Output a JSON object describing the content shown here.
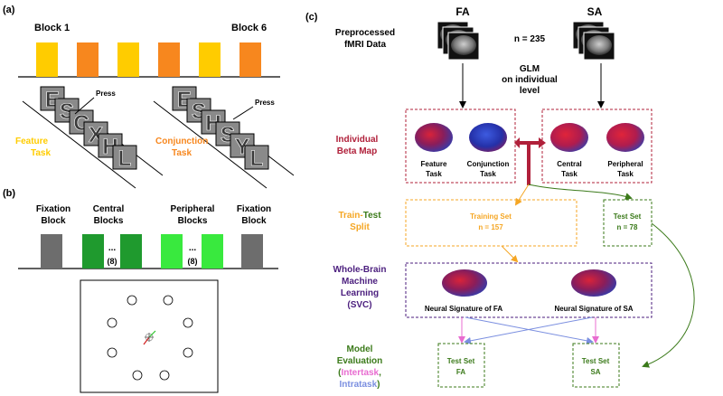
{
  "panel_a": {
    "label": "(a)",
    "block_first": "Block 1",
    "block_last": "Block 6",
    "block_colors": [
      "#ffcc00",
      "#f7871e",
      "#ffcc00",
      "#f7871e",
      "#ffcc00",
      "#f7871e"
    ],
    "press": "Press",
    "feature_letters": [
      "E",
      "S",
      "C",
      "X",
      "H",
      "L"
    ],
    "conjunction_letters": [
      "E",
      "S",
      "H",
      "S",
      "Y",
      "L"
    ],
    "feature_task": [
      "Feature",
      "Task"
    ],
    "conjunction_task": [
      "Conjunction",
      "Task"
    ],
    "feature_color": "#ffcc00",
    "conjunction_color": "#f7871e"
  },
  "panel_b": {
    "label": "(b)",
    "fixation_block_1": [
      "Fixation",
      "Block"
    ],
    "central_blocks": [
      "Central",
      "Blocks"
    ],
    "peripheral_blocks": [
      "Peripheral",
      "Blocks"
    ],
    "fixation_block_2": [
      "Fixation",
      "Block"
    ],
    "ellipsis": "...",
    "count": "(8)",
    "colors": {
      "fixation": "#6d6d6d",
      "central": "#1f9a2e",
      "peripheral": "#39e93e"
    }
  },
  "panel_c": {
    "label": "(c)",
    "preprocessed": [
      "Preprocessed",
      "fMRI Data"
    ],
    "fa": "FA",
    "sa": "SA",
    "n_total": "n = 235",
    "glm": [
      "GLM",
      "on individual",
      "level"
    ],
    "individual_beta": [
      "Individual",
      "Beta Map"
    ],
    "feature_task": [
      "Feature",
      "Task"
    ],
    "conjunction_task": [
      "Conjunction",
      "Task"
    ],
    "central_task": [
      "Central",
      "Task"
    ],
    "peripheral_task": [
      "Peripheral",
      "Task"
    ],
    "split_train": "Train-",
    "split_test": "Test",
    "split_word": "Split",
    "training_set": "Training Set",
    "training_n": "n = 157",
    "test_set": "Test Set",
    "test_n": "n = 78",
    "wbml": [
      "Whole-Brain",
      "Machine",
      "Learning",
      "(SVC)"
    ],
    "signature_fa": "Neural Signature of FA",
    "signature_sa": "Neural Signature of SA",
    "model_eval": [
      "Model",
      "Evaluation"
    ],
    "intertask": "Intertask",
    "intratask": "Intratask",
    "test_fa": [
      "Test Set",
      "FA"
    ],
    "test_sa": [
      "Test Set",
      "SA"
    ],
    "colors": {
      "beta": "#b0203a",
      "split_orange": "#f5a623",
      "green": "#3b7a1a",
      "purple": "#4b1e7e",
      "intertask": "#e86cd0",
      "intratask": "#7b8fe0"
    }
  }
}
